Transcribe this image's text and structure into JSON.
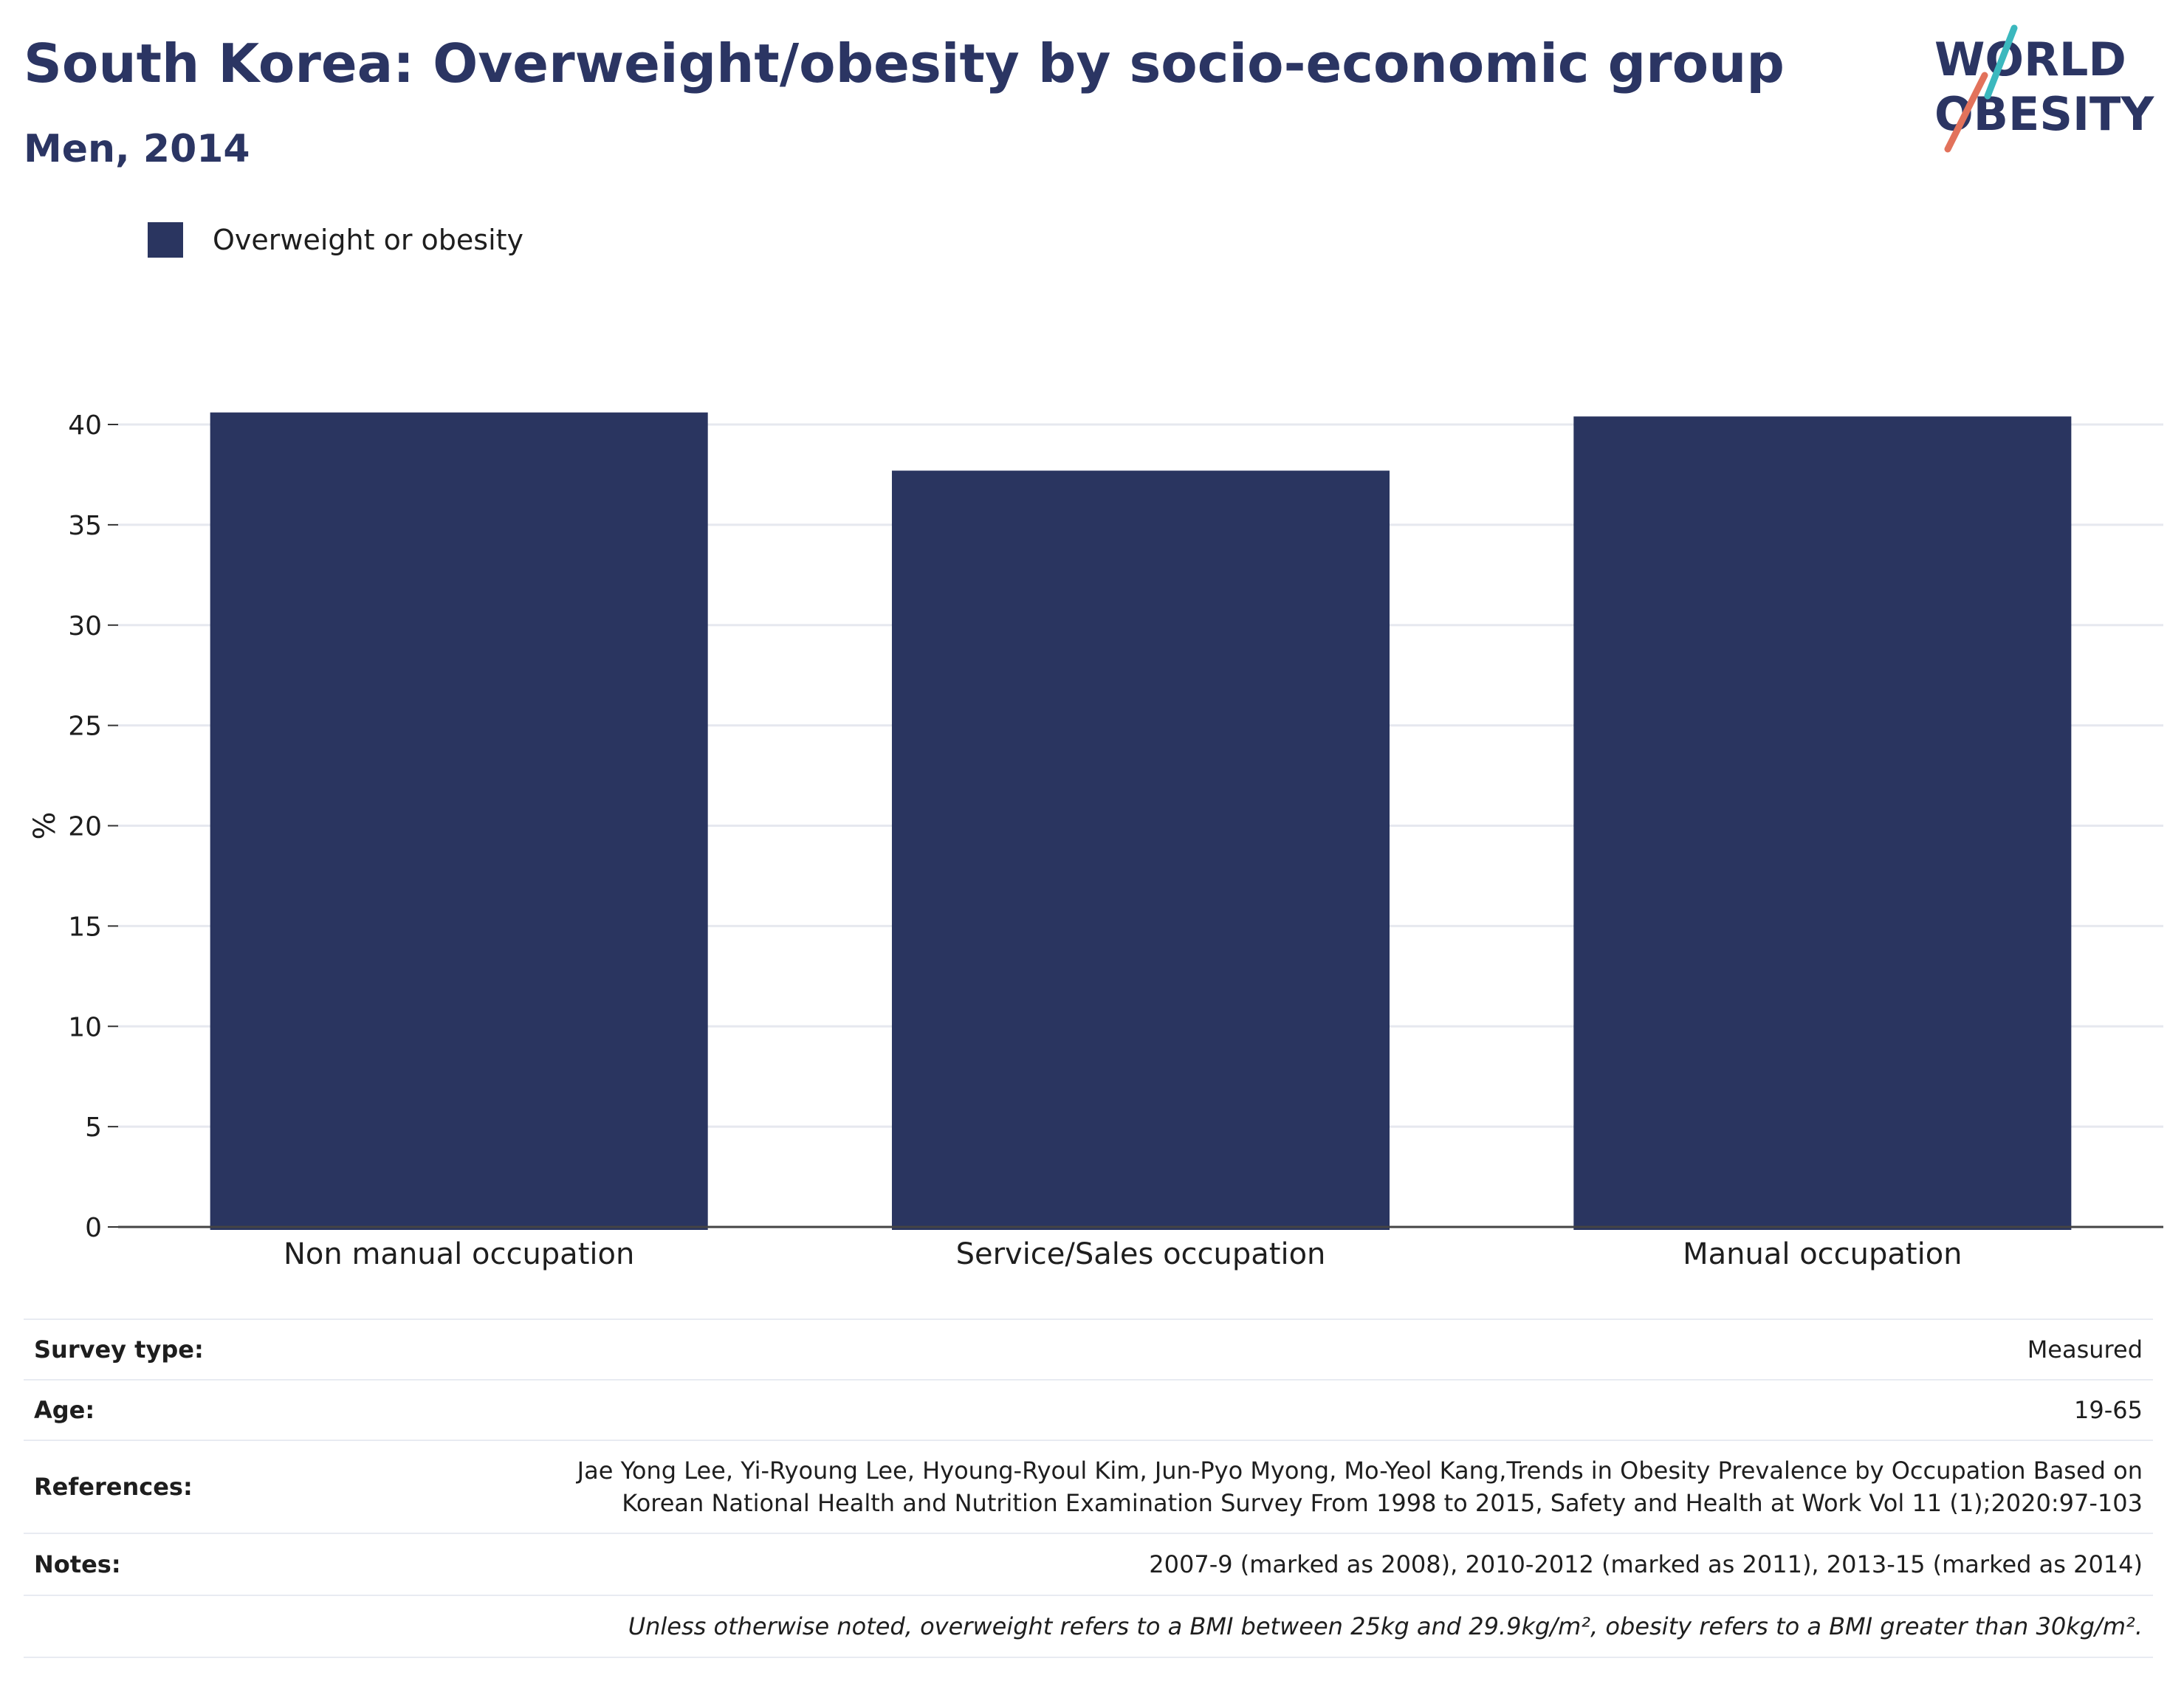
{
  "header": {
    "title": "South Korea: Overweight/obesity by socio-economic group",
    "subtitle": "Men, 2014"
  },
  "logo": {
    "line1": "WORLD",
    "line2": "OBESITY",
    "slash_colors": [
      "#3bb8be",
      "#e2725b"
    ],
    "text_color": "#2b3563"
  },
  "legend": {
    "label": "Overweight or obesity",
    "color": "#2a3560"
  },
  "chart_data": {
    "type": "bar",
    "categories": [
      "Non manual occupation",
      "Service/Sales occupation",
      "Manual occupation"
    ],
    "series": [
      {
        "name": "Overweight or obesity",
        "values": [
          40.6,
          37.7,
          40.4
        ],
        "color": "#2a3560"
      }
    ],
    "ylabel": "%",
    "xlabel": "",
    "ylim": [
      0,
      40
    ],
    "yticks": [
      0,
      5,
      10,
      15,
      20,
      25,
      30,
      35,
      40
    ],
    "grid": true,
    "legend_position": "top-left"
  },
  "info": {
    "survey_type": {
      "label": "Survey type:",
      "value": "Measured"
    },
    "age": {
      "label": "Age:",
      "value": "19-65"
    },
    "references": {
      "label": "References:",
      "line1": "Jae Yong Lee, Yi-Ryoung Lee, Hyoung-Ryoul Kim, Jun-Pyo Myong, Mo-Yeol Kang,Trends in Obesity Prevalence by Occupation Based on",
      "line2": "Korean National Health and Nutrition Examination Survey From 1998 to 2015, Safety and Health at Work Vol 11 (1);2020:97-103"
    },
    "notes": {
      "label": "Notes:",
      "value": "2007-9 (marked as 2008), 2010-2012 (marked as 2011), 2013-15 (marked as 2014)"
    },
    "definition": "Unless otherwise noted, overweight refers to a BMI between 25kg and 29.9kg/m², obesity refers to a BMI greater than 30kg/m²."
  }
}
